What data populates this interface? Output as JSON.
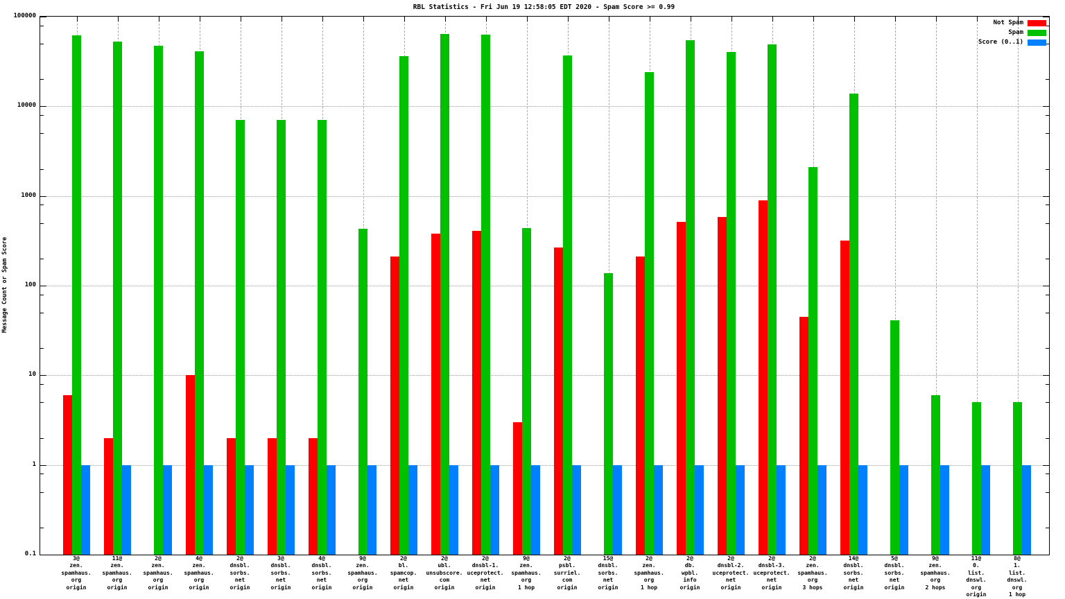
{
  "window_title": "RBL Statistics - Fri Jun 19 12:58:05 EDT 2020 - Spam Score >= 0.99",
  "colors": {
    "background": "#ffffff",
    "axis": "#000000",
    "grid": "#9a9a9a",
    "not_spam": "#ff0000",
    "spam": "#00c000",
    "score": "#0080ff"
  },
  "chart_data": {
    "type": "bar",
    "title": "RBL Statistics - Fri Jun 19 12:58:05 EDT 2020 - Spam Score >= 0.99",
    "xlabel": "",
    "ylabel": "Message Count or Spam Score",
    "y_scale": "log",
    "ylim": [
      0.1,
      100000
    ],
    "y_ticks": [
      100000,
      10000,
      1000,
      100,
      10,
      1,
      0.1
    ],
    "y_tick_labels": [
      "100000",
      "10000",
      "1000",
      "100",
      "10",
      "1",
      "0.1"
    ],
    "y_minor_tick_multipliers": [
      2,
      5,
      8
    ],
    "grid": true,
    "legend_position": "top-right",
    "categories": [
      [
        "3@",
        "zen.",
        "spamhaus.",
        "org",
        "origin"
      ],
      [
        "11@",
        "zen.",
        "spamhaus.",
        "org",
        "origin"
      ],
      [
        "2@",
        "zen.",
        "spamhaus.",
        "org",
        "origin"
      ],
      [
        "4@",
        "zen.",
        "spamhaus.",
        "org",
        "origin"
      ],
      [
        "2@",
        "dnsbl.",
        "sorbs.",
        "net",
        "origin"
      ],
      [
        "3@",
        "dnsbl.",
        "sorbs.",
        "net",
        "origin"
      ],
      [
        "4@",
        "dnsbl.",
        "sorbs.",
        "net",
        "origin"
      ],
      [
        "9@",
        "zen.",
        "spamhaus.",
        "org",
        "origin"
      ],
      [
        "2@",
        "bl.",
        "spamcop.",
        "net",
        "origin"
      ],
      [
        "2@",
        "ubl.",
        "unsubscore.",
        "com",
        "origin"
      ],
      [
        "2@",
        "dnsbl-1.",
        "uceprotect.",
        "net",
        "origin"
      ],
      [
        "9@",
        "zen.",
        "spamhaus.",
        "org",
        "1 hop"
      ],
      [
        "2@",
        "psbl.",
        "surriel.",
        "com",
        "origin"
      ],
      [
        "15@",
        "dnsbl.",
        "sorbs.",
        "net",
        "origin"
      ],
      [
        "2@",
        "zen.",
        "spamhaus.",
        "org",
        "1 hop"
      ],
      [
        "2@",
        "db.",
        "wpbl.",
        "info",
        "origin"
      ],
      [
        "2@",
        "dnsbl-2.",
        "uceprotect.",
        "net",
        "origin"
      ],
      [
        "2@",
        "dnsbl-3.",
        "uceprotect.",
        "net",
        "origin"
      ],
      [
        "2@",
        "zen.",
        "spamhaus.",
        "org",
        "3 hops"
      ],
      [
        "14@",
        "dnsbl.",
        "sorbs.",
        "net",
        "origin"
      ],
      [
        "5@",
        "dnsbl.",
        "sorbs.",
        "net",
        "origin"
      ],
      [
        "9@",
        "zen.",
        "spamhaus.",
        "org",
        "2 hops"
      ],
      [
        "11@",
        "0.",
        "list.",
        "dnswl.",
        "org",
        "origin"
      ],
      [
        "8@",
        "1.",
        "list.",
        "dnswl.",
        "org",
        "1 hop"
      ]
    ],
    "series": [
      {
        "name": "Not Spam",
        "color": "#ff0000",
        "values": [
          6,
          2,
          null,
          10,
          2,
          2,
          2,
          null,
          210,
          380,
          410,
          3,
          265,
          null,
          210,
          510,
          580,
          900,
          45,
          320,
          null,
          null,
          null,
          null
        ]
      },
      {
        "name": "Spam",
        "color": "#00c000",
        "values": [
          62000,
          53000,
          47000,
          41000,
          7000,
          7000,
          7000,
          430,
          36000,
          64000,
          63000,
          440,
          37000,
          137,
          24000,
          55000,
          40000,
          49000,
          2100,
          13900,
          41,
          6,
          5,
          5
        ]
      },
      {
        "name": "Score (0..1)",
        "color": "#0080ff",
        "values": [
          1,
          1,
          1,
          1,
          1,
          1,
          1,
          1,
          1,
          1,
          1,
          1,
          1,
          1,
          1,
          1,
          1,
          1,
          1,
          1,
          1,
          1,
          1,
          1
        ]
      }
    ]
  }
}
